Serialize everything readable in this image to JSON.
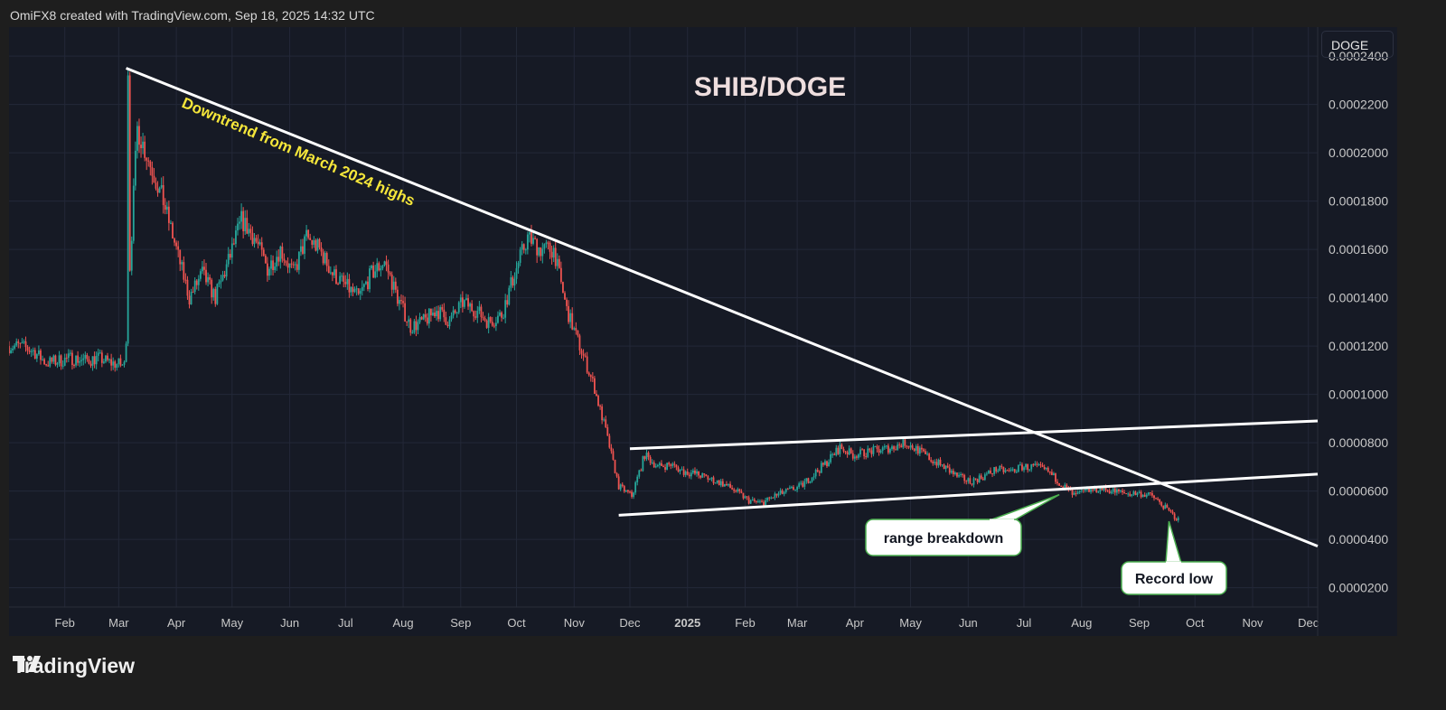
{
  "header": {
    "credit": "OmiFX8 created with TradingView.com, Sep 18, 2025 14:32 UTC"
  },
  "symbol_badge": "DOGE",
  "footer": {
    "brand": "TradingView"
  },
  "colors": {
    "background": "#161a25",
    "up": "#26a69a",
    "down": "#ef5350",
    "trendline": "#ffffff",
    "annotation_text": "#f5e63a",
    "title": "#eedede",
    "callout_border": "#4caf50"
  },
  "chart_data": {
    "type": "candlestick",
    "title": "SHIB/DOGE",
    "ylim": [
      1.2e-05,
      0.000252
    ],
    "y_ticks": [
      "0.0002400",
      "0.0002200",
      "0.0002000",
      "0.0001800",
      "0.0001600",
      "0.0001400",
      "0.0001200",
      "0.0001000",
      "0.0000800",
      "0.0000600",
      "0.0000400",
      "0.0000200"
    ],
    "y_tick_values": [
      0.00024,
      0.00022,
      0.0002,
      0.00018,
      0.00016,
      0.00014,
      0.00012,
      0.0001,
      8e-05,
      6e-05,
      4e-05,
      2e-05
    ],
    "x_ticks": [
      {
        "label": "Feb",
        "date": "2024-02-01"
      },
      {
        "label": "Mar",
        "date": "2024-03-01"
      },
      {
        "label": "Apr",
        "date": "2024-04-01"
      },
      {
        "label": "May",
        "date": "2024-05-01"
      },
      {
        "label": "Jun",
        "date": "2024-06-01"
      },
      {
        "label": "Jul",
        "date": "2024-07-01"
      },
      {
        "label": "Aug",
        "date": "2024-08-01"
      },
      {
        "label": "Sep",
        "date": "2024-09-01"
      },
      {
        "label": "Oct",
        "date": "2024-10-01"
      },
      {
        "label": "Nov",
        "date": "2024-11-01"
      },
      {
        "label": "Dec",
        "date": "2024-12-01"
      },
      {
        "label": "2025",
        "date": "2025-01-01",
        "bold": true
      },
      {
        "label": "Feb",
        "date": "2025-02-01"
      },
      {
        "label": "Mar",
        "date": "2025-03-01"
      },
      {
        "label": "Apr",
        "date": "2025-04-01"
      },
      {
        "label": "May",
        "date": "2025-05-01"
      },
      {
        "label": "Jun",
        "date": "2025-06-01"
      },
      {
        "label": "Jul",
        "date": "2025-07-01"
      },
      {
        "label": "Aug",
        "date": "2025-08-01"
      },
      {
        "label": "Sep",
        "date": "2025-09-01"
      },
      {
        "label": "Oct",
        "date": "2025-10-01"
      },
      {
        "label": "Nov",
        "date": "2025-11-01"
      },
      {
        "label": "Dec",
        "date": "2025-12-01"
      }
    ],
    "xlim": [
      "2024-01-02",
      "2025-12-06"
    ],
    "grid": true,
    "weekly_closes_start": "2024-01-02",
    "weekly_closes": [
      0.00012,
      0.000118,
      0.000113,
      0.000114,
      0.000115,
      0.000114,
      0.000115,
      0.000113,
      0.000112,
      0.00021,
      0.000195,
      0.00018,
      0.00016,
      0.00014,
      0.00015,
      0.00014,
      0.000155,
      0.000172,
      0.000165,
      0.000152,
      0.00016,
      0.00015,
      0.000165,
      0.00016,
      0.00015,
      0.000145,
      0.00014,
      0.00015,
      0.000155,
      0.00014,
      0.000128,
      0.00013,
      0.000135,
      0.00013,
      0.000138,
      0.000135,
      0.00013,
      0.000133,
      0.00015,
      0.000165,
      0.00016,
      0.00016,
      0.000135,
      0.00012,
      0.000105,
      8.5e-05,
      6.2e-05,
      5.8e-05,
      7.5e-05,
      7e-05,
      7.1e-05,
      6.8e-05,
      6.7e-05,
      6.5e-05,
      6.3e-05,
      6e-05,
      5.6e-05,
      5.5e-05,
      5.8e-05,
      6e-05,
      6.2e-05,
      6.7e-05,
      7.2e-05,
      7.8e-05,
      7.5e-05,
      7.6e-05,
      7.7e-05,
      7.8e-05,
      8e-05,
      7.7e-05,
      7.3e-05,
      7e-05,
      6.6e-05,
      6.4e-05,
      6.6e-05,
      6.9e-05,
      6.8e-05,
      7e-05,
      7e-05,
      6.8e-05,
      6.3e-05,
      5.8e-05,
      6e-05,
      6.1e-05,
      6e-05,
      5.9e-05,
      5.9e-05,
      5.8e-05,
      5.3e-05,
      4.8e-05
    ],
    "trendlines": [
      {
        "name": "downtrend",
        "from": [
          "2024-03-05",
          0.000235
        ],
        "to": [
          "2025-12-06",
          3.72e-05
        ]
      },
      {
        "name": "range-top",
        "from": [
          "2024-12-01",
          7.75e-05
        ],
        "to": [
          "2025-12-06",
          8.9e-05
        ]
      },
      {
        "name": "range-bottom",
        "from": [
          "2024-11-25",
          5e-05
        ],
        "to": [
          "2025-12-06",
          6.7e-05
        ]
      }
    ],
    "annotations": [
      {
        "text": "Downtrend from March 2024 highs",
        "type": "rotated-text"
      },
      {
        "text": "range breakdown",
        "type": "callout",
        "point": [
          "2025-07-20",
          5.85e-05
        ]
      },
      {
        "text": "Record low",
        "type": "callout",
        "point": [
          "2025-09-17",
          4.75e-05
        ]
      }
    ]
  }
}
